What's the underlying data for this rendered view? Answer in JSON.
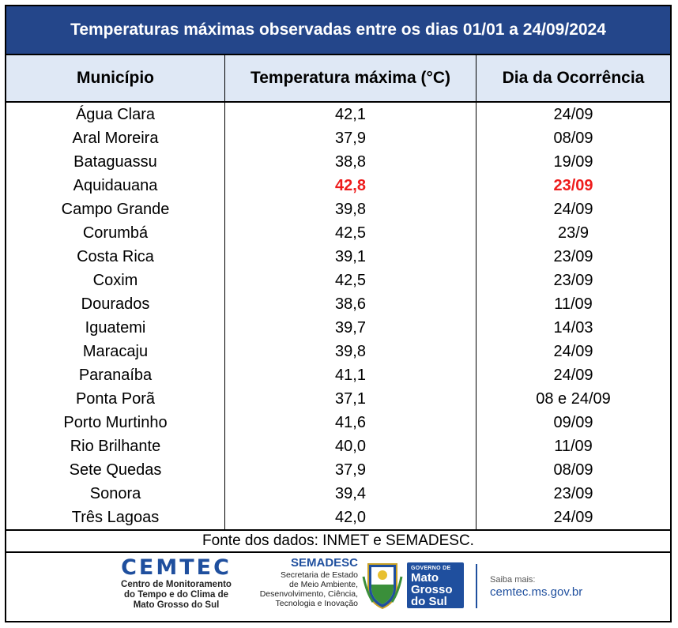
{
  "title": "Temperaturas máximas observadas entre os dias 01/01 a 24/09/2024",
  "headers": [
    "Município",
    "Temperatura máxima (°C)",
    "Dia da Ocorrência"
  ],
  "rows": [
    {
      "municipio": "Água Clara",
      "temp": "42,1",
      "dia": "24/09",
      "highlight": false
    },
    {
      "municipio": "Aral Moreira",
      "temp": "37,9",
      "dia": "08/09",
      "highlight": false
    },
    {
      "municipio": "Bataguassu",
      "temp": "38,8",
      "dia": "19/09",
      "highlight": false
    },
    {
      "municipio": "Aquidauana",
      "temp": "42,8",
      "dia": "23/09",
      "highlight": true
    },
    {
      "municipio": "Campo Grande",
      "temp": "39,8",
      "dia": "24/09",
      "highlight": false
    },
    {
      "municipio": "Corumbá",
      "temp": "42,5",
      "dia": "23/9",
      "highlight": false
    },
    {
      "municipio": "Costa Rica",
      "temp": "39,1",
      "dia": "23/09",
      "highlight": false
    },
    {
      "municipio": "Coxim",
      "temp": "42,5",
      "dia": "23/09",
      "highlight": false
    },
    {
      "municipio": "Dourados",
      "temp": "38,6",
      "dia": "11/09",
      "highlight": false
    },
    {
      "municipio": "Iguatemi",
      "temp": "39,7",
      "dia": "14/03",
      "highlight": false
    },
    {
      "municipio": "Maracaju",
      "temp": "39,8",
      "dia": "24/09",
      "highlight": false
    },
    {
      "municipio": "Paranaíba",
      "temp": "41,1",
      "dia": "24/09",
      "highlight": false
    },
    {
      "municipio": "Ponta Porã",
      "temp": "37,1",
      "dia": "08 e 24/09",
      "highlight": false
    },
    {
      "municipio": "Porto Murtinho",
      "temp": "41,6",
      "dia": "09/09",
      "highlight": false
    },
    {
      "municipio": "Rio Brilhante",
      "temp": "40,0",
      "dia": "11/09",
      "highlight": false
    },
    {
      "municipio": "Sete Quedas",
      "temp": "37,9",
      "dia": "08/09",
      "highlight": false
    },
    {
      "municipio": "Sonora",
      "temp": "39,4",
      "dia": "23/09",
      "highlight": false
    },
    {
      "municipio": "Três Lagoas",
      "temp": "42,0",
      "dia": "24/09",
      "highlight": false
    }
  ],
  "source": "Fonte dos dados: INMET e SEMADESC.",
  "logos": {
    "cemtec_name": "CEMTEC",
    "cemtec_sub": [
      "Centro de Monitoramento",
      "do Tempo e do Clima de",
      "Mato Grosso do Sul"
    ],
    "semadesc_name": "SEMADESC",
    "semadesc_sub": [
      "Secretaria de Estado",
      "de Meio Ambiente,",
      "Desenvolvimento, Ciência,",
      "Tecnologia e Inovação"
    ],
    "gov_top": "GOVERNO DE",
    "gov_name": [
      "Mato",
      "Grosso",
      "do Sul"
    ],
    "saiba_label": "Saiba mais:",
    "saiba_site": "cemtec.ms.gov.br",
    "coat_icon": "state-coat-of-arms-icon"
  },
  "colors": {
    "title_bg": "#24468a",
    "header_bg": "#dfe8f5",
    "highlight": "#ee1c1c",
    "brand_blue": "#1f4f9e"
  }
}
